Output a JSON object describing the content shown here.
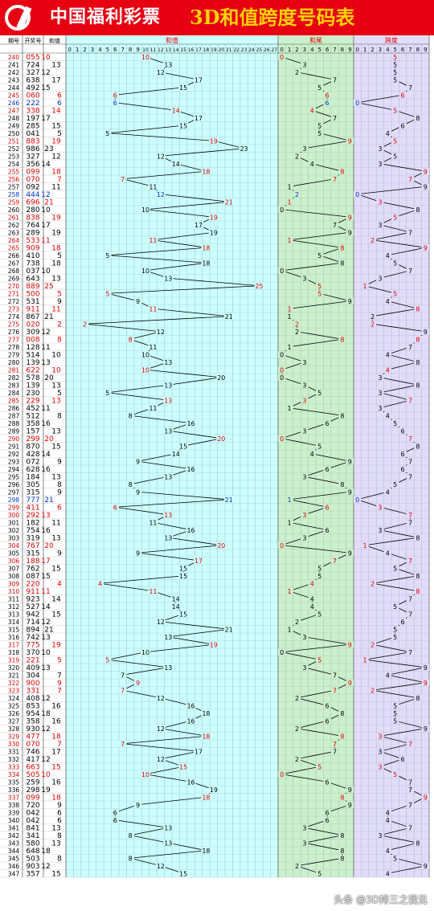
{
  "header": {
    "brand": "中国福利彩票",
    "title": "3D和值跨度号码表"
  },
  "watermark": "头条 @3D排三之我见",
  "columns": {
    "period": "期号",
    "number": "开奖号",
    "sum": "和值",
    "sum_section": "和值",
    "tail_section": "和尾",
    "span_section": "跨度"
  },
  "colors": {
    "header_red": "#e60012",
    "title_yellow": "#ffd200",
    "sum_bg": "#ccffff",
    "tail_bg": "#ccf0cc",
    "span_bg": "#e2dcfb",
    "red": "#e00000",
    "blue": "#0033cc",
    "ink": "#000000"
  },
  "chart_data": {
    "type": "table",
    "sum_ticks": [
      0,
      1,
      2,
      3,
      4,
      5,
      6,
      7,
      8,
      9,
      10,
      11,
      12,
      13,
      14,
      15,
      16,
      17,
      18,
      19,
      20,
      21,
      22,
      23,
      24,
      25,
      26,
      27
    ],
    "digit_ticks": [
      0,
      1,
      2,
      3,
      4,
      5,
      6,
      7,
      8,
      9
    ],
    "rows": [
      [
        "240",
        "055"
      ],
      [
        "241",
        "724"
      ],
      [
        "242",
        "327"
      ],
      [
        "243",
        "638"
      ],
      [
        "244",
        "492"
      ],
      [
        "245",
        "060"
      ],
      [
        "246",
        "222"
      ],
      [
        "247",
        "338"
      ],
      [
        "248",
        "197"
      ],
      [
        "249",
        "285"
      ],
      [
        "250",
        "041"
      ],
      [
        "251",
        "883"
      ],
      [
        "252",
        "986"
      ],
      [
        "253",
        "327"
      ],
      [
        "254",
        "356"
      ],
      [
        "255",
        "099"
      ],
      [
        "256",
        "070"
      ],
      [
        "257",
        "092"
      ],
      [
        "258",
        "444"
      ],
      [
        "259",
        "696"
      ],
      [
        "260",
        "280"
      ],
      [
        "261",
        "838"
      ],
      [
        "262",
        "764"
      ],
      [
        "263",
        "289"
      ],
      [
        "264",
        "533"
      ],
      [
        "265",
        "909"
      ],
      [
        "266",
        "410"
      ],
      [
        "267",
        "738"
      ],
      [
        "268",
        "037"
      ],
      [
        "269",
        "643"
      ],
      [
        "270",
        "889"
      ],
      [
        "271",
        "500"
      ],
      [
        "272",
        "531"
      ],
      [
        "273",
        "911"
      ],
      [
        "274",
        "867"
      ],
      [
        "275",
        "020"
      ],
      [
        "276",
        "309"
      ],
      [
        "277",
        "008"
      ],
      [
        "278",
        "128"
      ],
      [
        "279",
        "514"
      ],
      [
        "280",
        "139"
      ],
      [
        "281",
        "622"
      ],
      [
        "282",
        "578"
      ],
      [
        "283",
        "139"
      ],
      [
        "284",
        "230"
      ],
      [
        "285",
        "229"
      ],
      [
        "286",
        "452"
      ],
      [
        "287",
        "512"
      ],
      [
        "288",
        "358"
      ],
      [
        "289",
        "157"
      ],
      [
        "290",
        "299"
      ],
      [
        "291",
        "870"
      ],
      [
        "292",
        "428"
      ],
      [
        "293",
        "072"
      ],
      [
        "294",
        "628"
      ],
      [
        "295",
        "184"
      ],
      [
        "296",
        "305"
      ],
      [
        "297",
        "315"
      ],
      [
        "298",
        "777"
      ],
      [
        "299",
        "411"
      ],
      [
        "300",
        "292"
      ],
      [
        "301",
        "182"
      ],
      [
        "302",
        "754"
      ],
      [
        "303",
        "319"
      ],
      [
        "304",
        "767"
      ],
      [
        "305",
        "315"
      ],
      [
        "306",
        "188"
      ],
      [
        "307",
        "762"
      ],
      [
        "308",
        "087"
      ],
      [
        "309",
        "220"
      ],
      [
        "310",
        "911"
      ],
      [
        "311",
        "923"
      ],
      [
        "312",
        "527"
      ],
      [
        "313",
        "942"
      ],
      [
        "314",
        "714"
      ],
      [
        "315",
        "894"
      ],
      [
        "316",
        "742"
      ],
      [
        "317",
        "775"
      ],
      [
        "318",
        "370"
      ],
      [
        "319",
        "221"
      ],
      [
        "320",
        "409"
      ],
      [
        "321",
        "304"
      ],
      [
        "322",
        "900"
      ],
      [
        "323",
        "331"
      ],
      [
        "324",
        "408"
      ],
      [
        "325",
        "853"
      ],
      [
        "326",
        "954"
      ],
      [
        "327",
        "358"
      ],
      [
        "328",
        "930"
      ],
      [
        "329",
        "477"
      ],
      [
        "330",
        "070"
      ],
      [
        "331",
        "746"
      ],
      [
        "332",
        "417"
      ],
      [
        "333",
        "663"
      ],
      [
        "334",
        "505"
      ],
      [
        "335",
        "259"
      ],
      [
        "336",
        "298"
      ],
      [
        "337",
        "099"
      ],
      [
        "338",
        "720"
      ],
      [
        "339",
        "042"
      ],
      [
        "340",
        "042"
      ],
      [
        "341",
        "841"
      ],
      [
        "342",
        "341"
      ],
      [
        "343",
        "580"
      ],
      [
        "344",
        "648"
      ],
      [
        "345",
        "503"
      ],
      [
        "346",
        "903"
      ],
      [
        "347",
        "357"
      ]
    ]
  }
}
